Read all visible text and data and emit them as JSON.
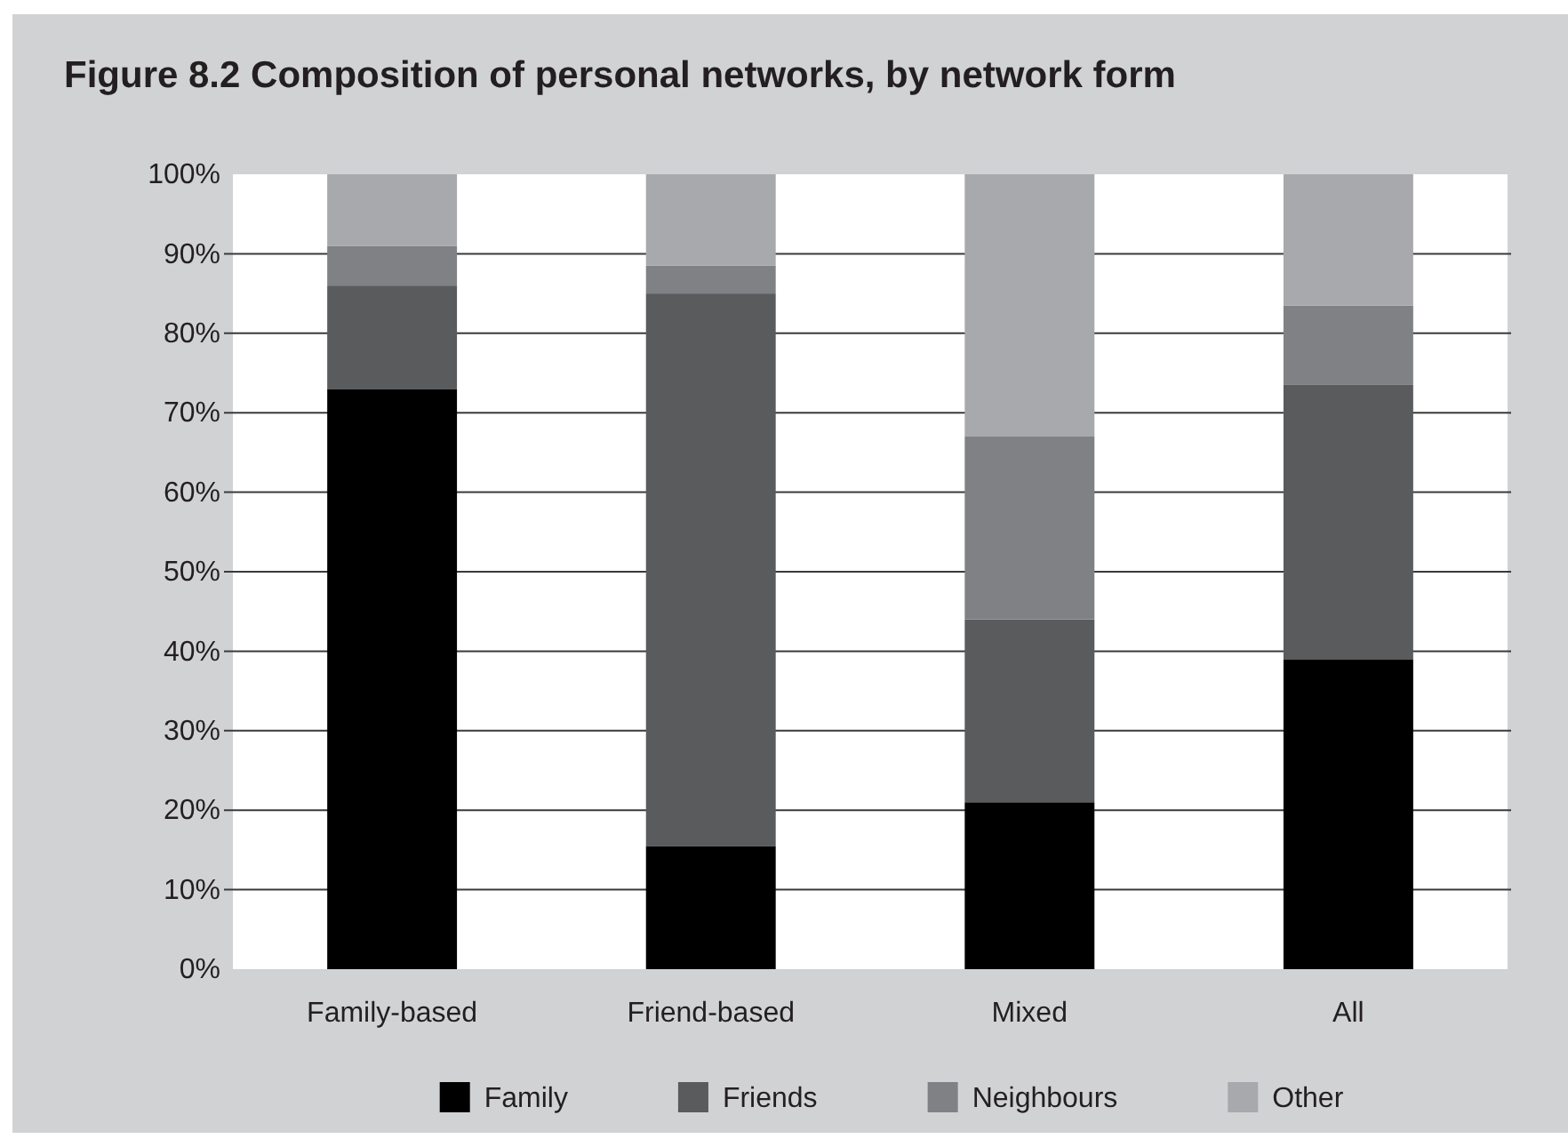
{
  "chart_data": {
    "type": "bar",
    "title": "Figure 8.2 Composition of personal networks, by network form",
    "categories": [
      "Family-based",
      "Friend-based",
      "Mixed",
      "All"
    ],
    "series": [
      {
        "name": "Family",
        "color": "#000000",
        "values": [
          73,
          15.5,
          21,
          39
        ]
      },
      {
        "name": "Friends",
        "color": "#5a5b5d",
        "values": [
          13,
          69.5,
          23,
          34.5
        ]
      },
      {
        "name": "Neighbours",
        "color": "#808184",
        "values": [
          5,
          3.5,
          23,
          10
        ]
      },
      {
        "name": "Other",
        "color": "#a8a9ac",
        "values": [
          9,
          11.5,
          33,
          16.5
        ]
      }
    ],
    "stacked": true,
    "ylim": [
      0,
      100
    ],
    "yticks": [
      {
        "value": 0,
        "label": "0%"
      },
      {
        "value": 10,
        "label": "10%"
      },
      {
        "value": 20,
        "label": "20%"
      },
      {
        "value": 30,
        "label": "30%"
      },
      {
        "value": 40,
        "label": "40%"
      },
      {
        "value": 50,
        "label": "50%"
      },
      {
        "value": 60,
        "label": "60%"
      },
      {
        "value": 70,
        "label": "70%"
      },
      {
        "value": 80,
        "label": "80%"
      },
      {
        "value": 90,
        "label": "90%"
      },
      {
        "value": 100,
        "label": "100%"
      }
    ],
    "grid": "y",
    "legend": "bottom"
  }
}
